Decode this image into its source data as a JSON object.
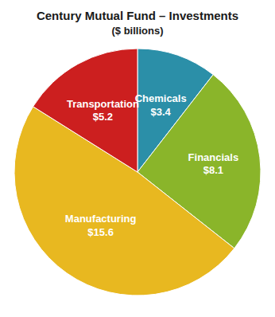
{
  "chart_data": {
    "type": "pie",
    "title": "Century Mutual Fund – Investments",
    "subtitle": "($ billions)",
    "categories": [
      "Chemicals",
      "Financials",
      "Manufacturing",
      "Transportation"
    ],
    "values": [
      3.4,
      8.1,
      15.6,
      5.2
    ],
    "value_labels": [
      "$3.4",
      "$8.1",
      "$15.6",
      "$5.2"
    ],
    "colors": [
      "#2b8fa8",
      "#8ab52a",
      "#e8b820",
      "#cc1f1f"
    ],
    "data_labels": true
  }
}
